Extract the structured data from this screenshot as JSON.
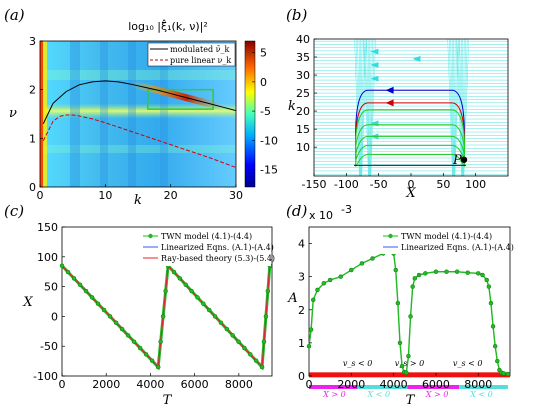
{
  "panels": {
    "a": {
      "label": "(a)"
    },
    "b": {
      "label": "(b)"
    },
    "c": {
      "label": "(c)"
    },
    "d": {
      "label": "(d)"
    }
  },
  "chart_data": [
    {
      "panel": "(a)",
      "type": "heatmap",
      "title": "log₁₀ |ξ̂₁(k, ν)|²",
      "xlabel": "k",
      "ylabel": "ν",
      "xlim": [
        0,
        30
      ],
      "ylim": [
        0,
        3
      ],
      "xticks": [
        "0",
        "10",
        "20",
        "30"
      ],
      "yticks": [
        "0",
        "1",
        "2",
        "3"
      ],
      "colorbar_ticks": [
        "5",
        "0",
        "-5",
        "-10",
        "-15"
      ],
      "colorbar_range": [
        -18,
        7
      ],
      "legend_position": "top-right",
      "series": [
        {
          "name": "modulated ν̄_k",
          "style": "solid",
          "color": "#000000",
          "x": [
            0.5,
            2,
            4,
            6,
            8,
            10,
            12,
            14,
            16,
            18,
            20,
            22,
            24,
            26,
            28,
            30
          ],
          "y": [
            1.3,
            1.72,
            1.96,
            2.1,
            2.16,
            2.18,
            2.16,
            2.11,
            2.05,
            1.99,
            1.92,
            1.85,
            1.78,
            1.71,
            1.64,
            1.57
          ]
        },
        {
          "name": "pure linear ν_k",
          "style": "dashed",
          "color": "#cc0000",
          "x": [
            0.5,
            2,
            3,
            4,
            5,
            6,
            8,
            10,
            12,
            14,
            16,
            18,
            20,
            22,
            24,
            26,
            28,
            30
          ],
          "y": [
            0.95,
            1.35,
            1.45,
            1.48,
            1.48,
            1.46,
            1.4,
            1.32,
            1.23,
            1.14,
            1.05,
            0.96,
            0.87,
            0.78,
            0.69,
            0.6,
            0.5,
            0.4
          ]
        }
      ],
      "annotation": {
        "type": "box",
        "color": "#33cc33",
        "k_range": [
          16.5,
          26.5
        ],
        "nu_range": [
          1.6,
          2.0
        ]
      }
    },
    {
      "panel": "(b)",
      "type": "line",
      "xlabel": "X",
      "ylabel": "k",
      "xlim": [
        -150,
        150
      ],
      "ylim": [
        2,
        40
      ],
      "xticks": [
        "-150",
        "-100",
        "-50",
        "0",
        "50",
        "100"
      ],
      "yticks": [
        "10",
        "15",
        "20",
        "25",
        "30",
        "35",
        "40"
      ],
      "point_label": "P",
      "point": [
        82,
        6.5
      ],
      "series": [
        {
          "color": "#0000cc",
          "k": 25.8
        },
        {
          "color": "#cc0000",
          "k": 22.3
        },
        {
          "color": "#22cc22",
          "k": 20.3
        },
        {
          "color": "#22cc22",
          "k": 16.2
        },
        {
          "color": "#22cc22",
          "k": 13.0
        },
        {
          "color": "#22cc22",
          "k": 10.5
        },
        {
          "color": "#22cc22",
          "k": 8.0
        }
      ]
    },
    {
      "panel": "(c)",
      "type": "line",
      "xlabel": "T",
      "ylabel": "X",
      "xlim": [
        0,
        9500
      ],
      "ylim": [
        -100,
        150
      ],
      "xticks": [
        "0",
        "2000",
        "4000",
        "6000",
        "8000"
      ],
      "yticks": [
        "-100",
        "-50",
        "0",
        "50",
        "100",
        "150"
      ],
      "legend_position": "top-right",
      "series": [
        {
          "name": "TWN model (4.1)-(4.4)",
          "color": "#22bb22",
          "marker": "circle"
        },
        {
          "name": "Linearized Eqns. (A.1)-(A.4)",
          "color": "#3355ff",
          "marker": "plus"
        },
        {
          "name": "Ray-based theory (5.3)-(5.4)",
          "color": "#ee2222",
          "marker": "none"
        }
      ],
      "x": [
        0,
        4350,
        4800,
        9050,
        9400
      ],
      "y": [
        85,
        -85,
        85,
        -85,
        85
      ]
    },
    {
      "panel": "(d)",
      "type": "line",
      "xlabel": "T",
      "ylabel": "A",
      "scale_label": "x 10",
      "scale_exponent": "-3",
      "xlim": [
        0,
        9500
      ],
      "ylim": [
        0,
        4.5
      ],
      "xticks": [
        "0",
        "2000",
        "4000",
        "6000",
        "8000"
      ],
      "yticks": [
        "0",
        "1",
        "2",
        "3",
        "4"
      ],
      "legend_position": "top-right",
      "series": [
        {
          "name": "TWN model (4.1)-(4.4)",
          "color": "#22bb22",
          "marker": "circle"
        },
        {
          "name": "Linearized Eqns. (A.1)-(A.4)",
          "color": "#3355ff",
          "marker": "plus"
        }
      ],
      "x": [
        0,
        100,
        200,
        400,
        700,
        1000,
        1500,
        2000,
        2500,
        3000,
        3500,
        3900,
        4000,
        4100,
        4200,
        4300,
        4400,
        4500,
        4600,
        4700,
        4800,
        4900,
        5000,
        5200,
        5500,
        6000,
        6500,
        7000,
        7500,
        8000,
        8200,
        8400,
        8500,
        8600,
        8700,
        8800,
        8900,
        9000,
        9100,
        9200,
        9400
      ],
      "y": [
        0.9,
        1.4,
        2.3,
        2.6,
        2.8,
        2.9,
        3.0,
        3.2,
        3.4,
        3.55,
        3.7,
        3.8,
        3.7,
        3.2,
        2.2,
        1.0,
        0.3,
        0.12,
        0.1,
        0.6,
        1.8,
        2.7,
        2.95,
        3.05,
        3.1,
        3.15,
        3.15,
        3.15,
        3.12,
        3.1,
        3.05,
        2.9,
        2.7,
        2.2,
        1.5,
        0.9,
        0.45,
        0.18,
        0.1,
        0.08,
        0.06
      ],
      "bands": [
        {
          "label": "v_s < 0",
          "label_T": 2300,
          "color": "#ee1111"
        },
        {
          "label": "v_s > 0",
          "label_T": 4750,
          "color": "#ee1111"
        },
        {
          "label": "v_s < 0",
          "label_T": 7500,
          "color": "#ee1111"
        },
        {
          "label": "X > 0",
          "label_T": 1200,
          "color": "#ee22ee"
        },
        {
          "label": "X < 0",
          "label_T": 3300,
          "color": "#55dddd"
        },
        {
          "label": "X > 0",
          "label_T": 6050,
          "color": "#ee22ee"
        },
        {
          "label": "X < 0",
          "label_T": 8150,
          "color": "#55dddd"
        }
      ]
    }
  ]
}
